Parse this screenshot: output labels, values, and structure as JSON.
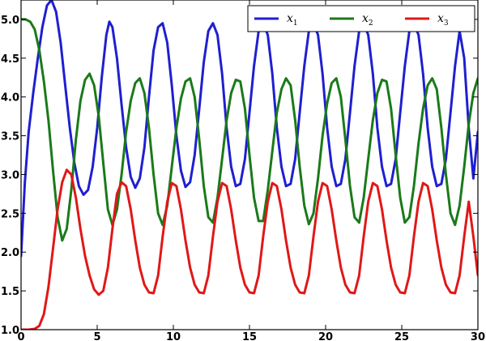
{
  "chart_data": {
    "type": "line",
    "title": "",
    "xlabel": "",
    "ylabel": "",
    "xlim": [
      0,
      30
    ],
    "ylim": [
      1.0,
      5.25
    ],
    "x_ticks": [
      0,
      5,
      10,
      15,
      20,
      25,
      30
    ],
    "x_tick_labels": [
      "0",
      "5",
      "10",
      "15",
      "20",
      "25",
      "30"
    ],
    "y_ticks": [
      1.0,
      1.5,
      2.0,
      2.5,
      3.0,
      3.5,
      4.0,
      4.5,
      5.0
    ],
    "y_tick_labels": [
      "1.0",
      "1.5",
      "2.0",
      "2.5",
      "3.0",
      "3.5",
      "4.0",
      "4.5",
      "5.0"
    ],
    "grid": false,
    "legend": {
      "placement": "top-right",
      "columns": 3
    },
    "series": [
      {
        "name": "x",
        "subscript": "1",
        "color": "#1f1fd0",
        "points": [
          [
            0,
            1.95
          ],
          [
            0.25,
            2.9
          ],
          [
            0.5,
            3.55
          ],
          [
            0.8,
            4.05
          ],
          [
            1.1,
            4.5
          ],
          [
            1.4,
            4.9
          ],
          [
            1.7,
            5.18
          ],
          [
            2.0,
            5.25
          ],
          [
            2.3,
            5.1
          ],
          [
            2.6,
            4.7
          ],
          [
            2.9,
            4.15
          ],
          [
            3.2,
            3.6
          ],
          [
            3.5,
            3.15
          ],
          [
            3.8,
            2.85
          ],
          [
            4.1,
            2.74
          ],
          [
            4.4,
            2.8
          ],
          [
            4.7,
            3.1
          ],
          [
            5.0,
            3.6
          ],
          [
            5.3,
            4.25
          ],
          [
            5.6,
            4.8
          ],
          [
            5.8,
            4.97
          ],
          [
            6.0,
            4.9
          ],
          [
            6.3,
            4.5
          ],
          [
            6.6,
            3.9
          ],
          [
            6.9,
            3.35
          ],
          [
            7.2,
            2.97
          ],
          [
            7.5,
            2.83
          ],
          [
            7.8,
            2.95
          ],
          [
            8.1,
            3.35
          ],
          [
            8.4,
            4.0
          ],
          [
            8.7,
            4.6
          ],
          [
            9.0,
            4.9
          ],
          [
            9.3,
            4.95
          ],
          [
            9.6,
            4.7
          ],
          [
            9.9,
            4.15
          ],
          [
            10.2,
            3.5
          ],
          [
            10.5,
            3.05
          ],
          [
            10.8,
            2.84
          ],
          [
            11.1,
            2.9
          ],
          [
            11.4,
            3.25
          ],
          [
            11.7,
            3.85
          ],
          [
            12.0,
            4.45
          ],
          [
            12.3,
            4.85
          ],
          [
            12.6,
            4.95
          ],
          [
            12.9,
            4.8
          ],
          [
            13.2,
            4.3
          ],
          [
            13.5,
            3.6
          ],
          [
            13.8,
            3.1
          ],
          [
            14.1,
            2.85
          ],
          [
            14.4,
            2.88
          ],
          [
            14.7,
            3.2
          ],
          [
            15.0,
            3.8
          ],
          [
            15.3,
            4.4
          ],
          [
            15.6,
            4.85
          ],
          [
            15.9,
            4.95
          ],
          [
            16.2,
            4.8
          ],
          [
            16.5,
            4.3
          ],
          [
            16.8,
            3.6
          ],
          [
            17.1,
            3.1
          ],
          [
            17.4,
            2.85
          ],
          [
            17.7,
            2.88
          ],
          [
            18.0,
            3.2
          ],
          [
            18.3,
            3.8
          ],
          [
            18.6,
            4.4
          ],
          [
            18.9,
            4.85
          ],
          [
            19.2,
            4.95
          ],
          [
            19.5,
            4.8
          ],
          [
            19.8,
            4.3
          ],
          [
            20.1,
            3.6
          ],
          [
            20.4,
            3.1
          ],
          [
            20.7,
            2.85
          ],
          [
            21.0,
            2.88
          ],
          [
            21.3,
            3.2
          ],
          [
            21.6,
            3.8
          ],
          [
            21.9,
            4.4
          ],
          [
            22.2,
            4.85
          ],
          [
            22.5,
            4.95
          ],
          [
            22.8,
            4.8
          ],
          [
            23.1,
            4.3
          ],
          [
            23.4,
            3.6
          ],
          [
            23.7,
            3.1
          ],
          [
            24.0,
            2.85
          ],
          [
            24.3,
            2.88
          ],
          [
            24.6,
            3.2
          ],
          [
            24.9,
            3.8
          ],
          [
            25.2,
            4.4
          ],
          [
            25.5,
            4.85
          ],
          [
            25.8,
            4.95
          ],
          [
            26.1,
            4.8
          ],
          [
            26.4,
            4.3
          ],
          [
            26.7,
            3.6
          ],
          [
            27.0,
            3.1
          ],
          [
            27.3,
            2.85
          ],
          [
            27.6,
            2.88
          ],
          [
            27.9,
            3.2
          ],
          [
            28.2,
            3.8
          ],
          [
            28.5,
            4.4
          ],
          [
            28.8,
            4.85
          ],
          [
            29.1,
            4.5
          ],
          [
            29.4,
            3.6
          ],
          [
            29.7,
            2.95
          ],
          [
            30.0,
            3.55
          ]
        ]
      },
      {
        "name": "x",
        "subscript": "2",
        "color": "#1a7a1a",
        "points": [
          [
            0,
            5.0
          ],
          [
            0.3,
            5.0
          ],
          [
            0.6,
            4.97
          ],
          [
            0.9,
            4.87
          ],
          [
            1.2,
            4.6
          ],
          [
            1.5,
            4.2
          ],
          [
            1.8,
            3.7
          ],
          [
            2.1,
            3.05
          ],
          [
            2.4,
            2.45
          ],
          [
            2.7,
            2.15
          ],
          [
            3.0,
            2.3
          ],
          [
            3.3,
            2.8
          ],
          [
            3.6,
            3.45
          ],
          [
            3.9,
            3.95
          ],
          [
            4.2,
            4.22
          ],
          [
            4.5,
            4.3
          ],
          [
            4.8,
            4.15
          ],
          [
            5.1,
            3.75
          ],
          [
            5.4,
            3.15
          ],
          [
            5.7,
            2.55
          ],
          [
            6.0,
            2.35
          ],
          [
            6.3,
            2.55
          ],
          [
            6.6,
            3.0
          ],
          [
            6.9,
            3.55
          ],
          [
            7.2,
            3.95
          ],
          [
            7.5,
            4.18
          ],
          [
            7.8,
            4.24
          ],
          [
            8.1,
            4.05
          ],
          [
            8.4,
            3.6
          ],
          [
            8.7,
            3.0
          ],
          [
            9.0,
            2.5
          ],
          [
            9.3,
            2.35
          ],
          [
            9.6,
            2.6
          ],
          [
            9.9,
            3.1
          ],
          [
            10.2,
            3.6
          ],
          [
            10.5,
            3.98
          ],
          [
            10.8,
            4.2
          ],
          [
            11.1,
            4.24
          ],
          [
            11.4,
            4.0
          ],
          [
            11.7,
            3.45
          ],
          [
            12.0,
            2.85
          ],
          [
            12.3,
            2.45
          ],
          [
            12.6,
            2.38
          ],
          [
            12.9,
            2.7
          ],
          [
            13.2,
            3.2
          ],
          [
            13.5,
            3.7
          ],
          [
            13.8,
            4.05
          ],
          [
            14.1,
            4.22
          ],
          [
            14.4,
            4.2
          ],
          [
            14.7,
            3.85
          ],
          [
            15.0,
            3.25
          ],
          [
            15.3,
            2.7
          ],
          [
            15.6,
            2.4
          ],
          [
            15.9,
            2.4
          ],
          [
            16.2,
            2.8
          ],
          [
            16.5,
            3.3
          ],
          [
            16.8,
            3.8
          ],
          [
            17.1,
            4.1
          ],
          [
            17.4,
            4.24
          ],
          [
            17.7,
            4.15
          ],
          [
            18.0,
            3.7
          ],
          [
            18.3,
            3.1
          ],
          [
            18.6,
            2.6
          ],
          [
            18.9,
            2.36
          ],
          [
            19.2,
            2.5
          ],
          [
            19.5,
            2.95
          ],
          [
            19.8,
            3.5
          ],
          [
            20.1,
            3.92
          ],
          [
            20.4,
            4.18
          ],
          [
            20.7,
            4.24
          ],
          [
            21.0,
            4.0
          ],
          [
            21.3,
            3.45
          ],
          [
            21.6,
            2.85
          ],
          [
            21.9,
            2.45
          ],
          [
            22.2,
            2.38
          ],
          [
            22.5,
            2.7
          ],
          [
            22.8,
            3.2
          ],
          [
            23.1,
            3.7
          ],
          [
            23.4,
            4.05
          ],
          [
            23.7,
            4.22
          ],
          [
            24.0,
            4.2
          ],
          [
            24.3,
            3.85
          ],
          [
            24.6,
            3.25
          ],
          [
            24.9,
            2.7
          ],
          [
            25.2,
            2.38
          ],
          [
            25.5,
            2.45
          ],
          [
            25.8,
            2.85
          ],
          [
            26.1,
            3.4
          ],
          [
            26.4,
            3.85
          ],
          [
            26.7,
            4.15
          ],
          [
            27.0,
            4.24
          ],
          [
            27.3,
            4.1
          ],
          [
            27.6,
            3.6
          ],
          [
            27.9,
            3.0
          ],
          [
            28.2,
            2.5
          ],
          [
            28.5,
            2.35
          ],
          [
            28.8,
            2.6
          ],
          [
            29.1,
            3.1
          ],
          [
            29.4,
            3.65
          ],
          [
            29.7,
            4.05
          ],
          [
            30.0,
            4.24
          ]
        ]
      },
      {
        "name": "x",
        "subscript": "3",
        "color": "#e01818",
        "points": [
          [
            0,
            1.0
          ],
          [
            0.5,
            1.0
          ],
          [
            0.9,
            1.01
          ],
          [
            1.2,
            1.05
          ],
          [
            1.5,
            1.2
          ],
          [
            1.8,
            1.55
          ],
          [
            2.1,
            2.05
          ],
          [
            2.4,
            2.55
          ],
          [
            2.7,
            2.9
          ],
          [
            3.0,
            3.06
          ],
          [
            3.3,
            3.0
          ],
          [
            3.6,
            2.7
          ],
          [
            3.9,
            2.3
          ],
          [
            4.2,
            1.95
          ],
          [
            4.5,
            1.7
          ],
          [
            4.8,
            1.52
          ],
          [
            5.1,
            1.45
          ],
          [
            5.4,
            1.5
          ],
          [
            5.7,
            1.8
          ],
          [
            6.0,
            2.3
          ],
          [
            6.3,
            2.75
          ],
          [
            6.6,
            2.9
          ],
          [
            6.9,
            2.85
          ],
          [
            7.2,
            2.55
          ],
          [
            7.5,
            2.15
          ],
          [
            7.8,
            1.8
          ],
          [
            8.1,
            1.58
          ],
          [
            8.4,
            1.48
          ],
          [
            8.7,
            1.47
          ],
          [
            9.0,
            1.7
          ],
          [
            9.3,
            2.2
          ],
          [
            9.6,
            2.65
          ],
          [
            9.9,
            2.89
          ],
          [
            10.2,
            2.85
          ],
          [
            10.5,
            2.55
          ],
          [
            10.8,
            2.15
          ],
          [
            11.1,
            1.8
          ],
          [
            11.4,
            1.58
          ],
          [
            11.7,
            1.48
          ],
          [
            12.0,
            1.47
          ],
          [
            12.3,
            1.7
          ],
          [
            12.6,
            2.2
          ],
          [
            12.9,
            2.65
          ],
          [
            13.2,
            2.89
          ],
          [
            13.5,
            2.85
          ],
          [
            13.8,
            2.55
          ],
          [
            14.1,
            2.15
          ],
          [
            14.4,
            1.8
          ],
          [
            14.7,
            1.58
          ],
          [
            15.0,
            1.48
          ],
          [
            15.3,
            1.47
          ],
          [
            15.6,
            1.7
          ],
          [
            15.9,
            2.2
          ],
          [
            16.2,
            2.65
          ],
          [
            16.5,
            2.89
          ],
          [
            16.8,
            2.85
          ],
          [
            17.1,
            2.55
          ],
          [
            17.4,
            2.15
          ],
          [
            17.7,
            1.8
          ],
          [
            18.0,
            1.58
          ],
          [
            18.3,
            1.48
          ],
          [
            18.6,
            1.47
          ],
          [
            18.9,
            1.7
          ],
          [
            19.2,
            2.2
          ],
          [
            19.5,
            2.65
          ],
          [
            19.8,
            2.89
          ],
          [
            20.1,
            2.85
          ],
          [
            20.4,
            2.55
          ],
          [
            20.7,
            2.15
          ],
          [
            21.0,
            1.8
          ],
          [
            21.3,
            1.58
          ],
          [
            21.6,
            1.48
          ],
          [
            21.9,
            1.47
          ],
          [
            22.2,
            1.7
          ],
          [
            22.5,
            2.2
          ],
          [
            22.8,
            2.65
          ],
          [
            23.1,
            2.89
          ],
          [
            23.4,
            2.85
          ],
          [
            23.7,
            2.55
          ],
          [
            24.0,
            2.15
          ],
          [
            24.3,
            1.8
          ],
          [
            24.6,
            1.58
          ],
          [
            24.9,
            1.48
          ],
          [
            25.2,
            1.47
          ],
          [
            25.5,
            1.7
          ],
          [
            25.8,
            2.2
          ],
          [
            26.1,
            2.65
          ],
          [
            26.4,
            2.89
          ],
          [
            26.7,
            2.85
          ],
          [
            27.0,
            2.55
          ],
          [
            27.3,
            2.15
          ],
          [
            27.6,
            1.8
          ],
          [
            27.9,
            1.58
          ],
          [
            28.2,
            1.48
          ],
          [
            28.5,
            1.47
          ],
          [
            28.8,
            1.7
          ],
          [
            29.1,
            2.2
          ],
          [
            29.4,
            2.65
          ],
          [
            29.7,
            2.2
          ],
          [
            30.0,
            1.7
          ]
        ]
      }
    ]
  }
}
